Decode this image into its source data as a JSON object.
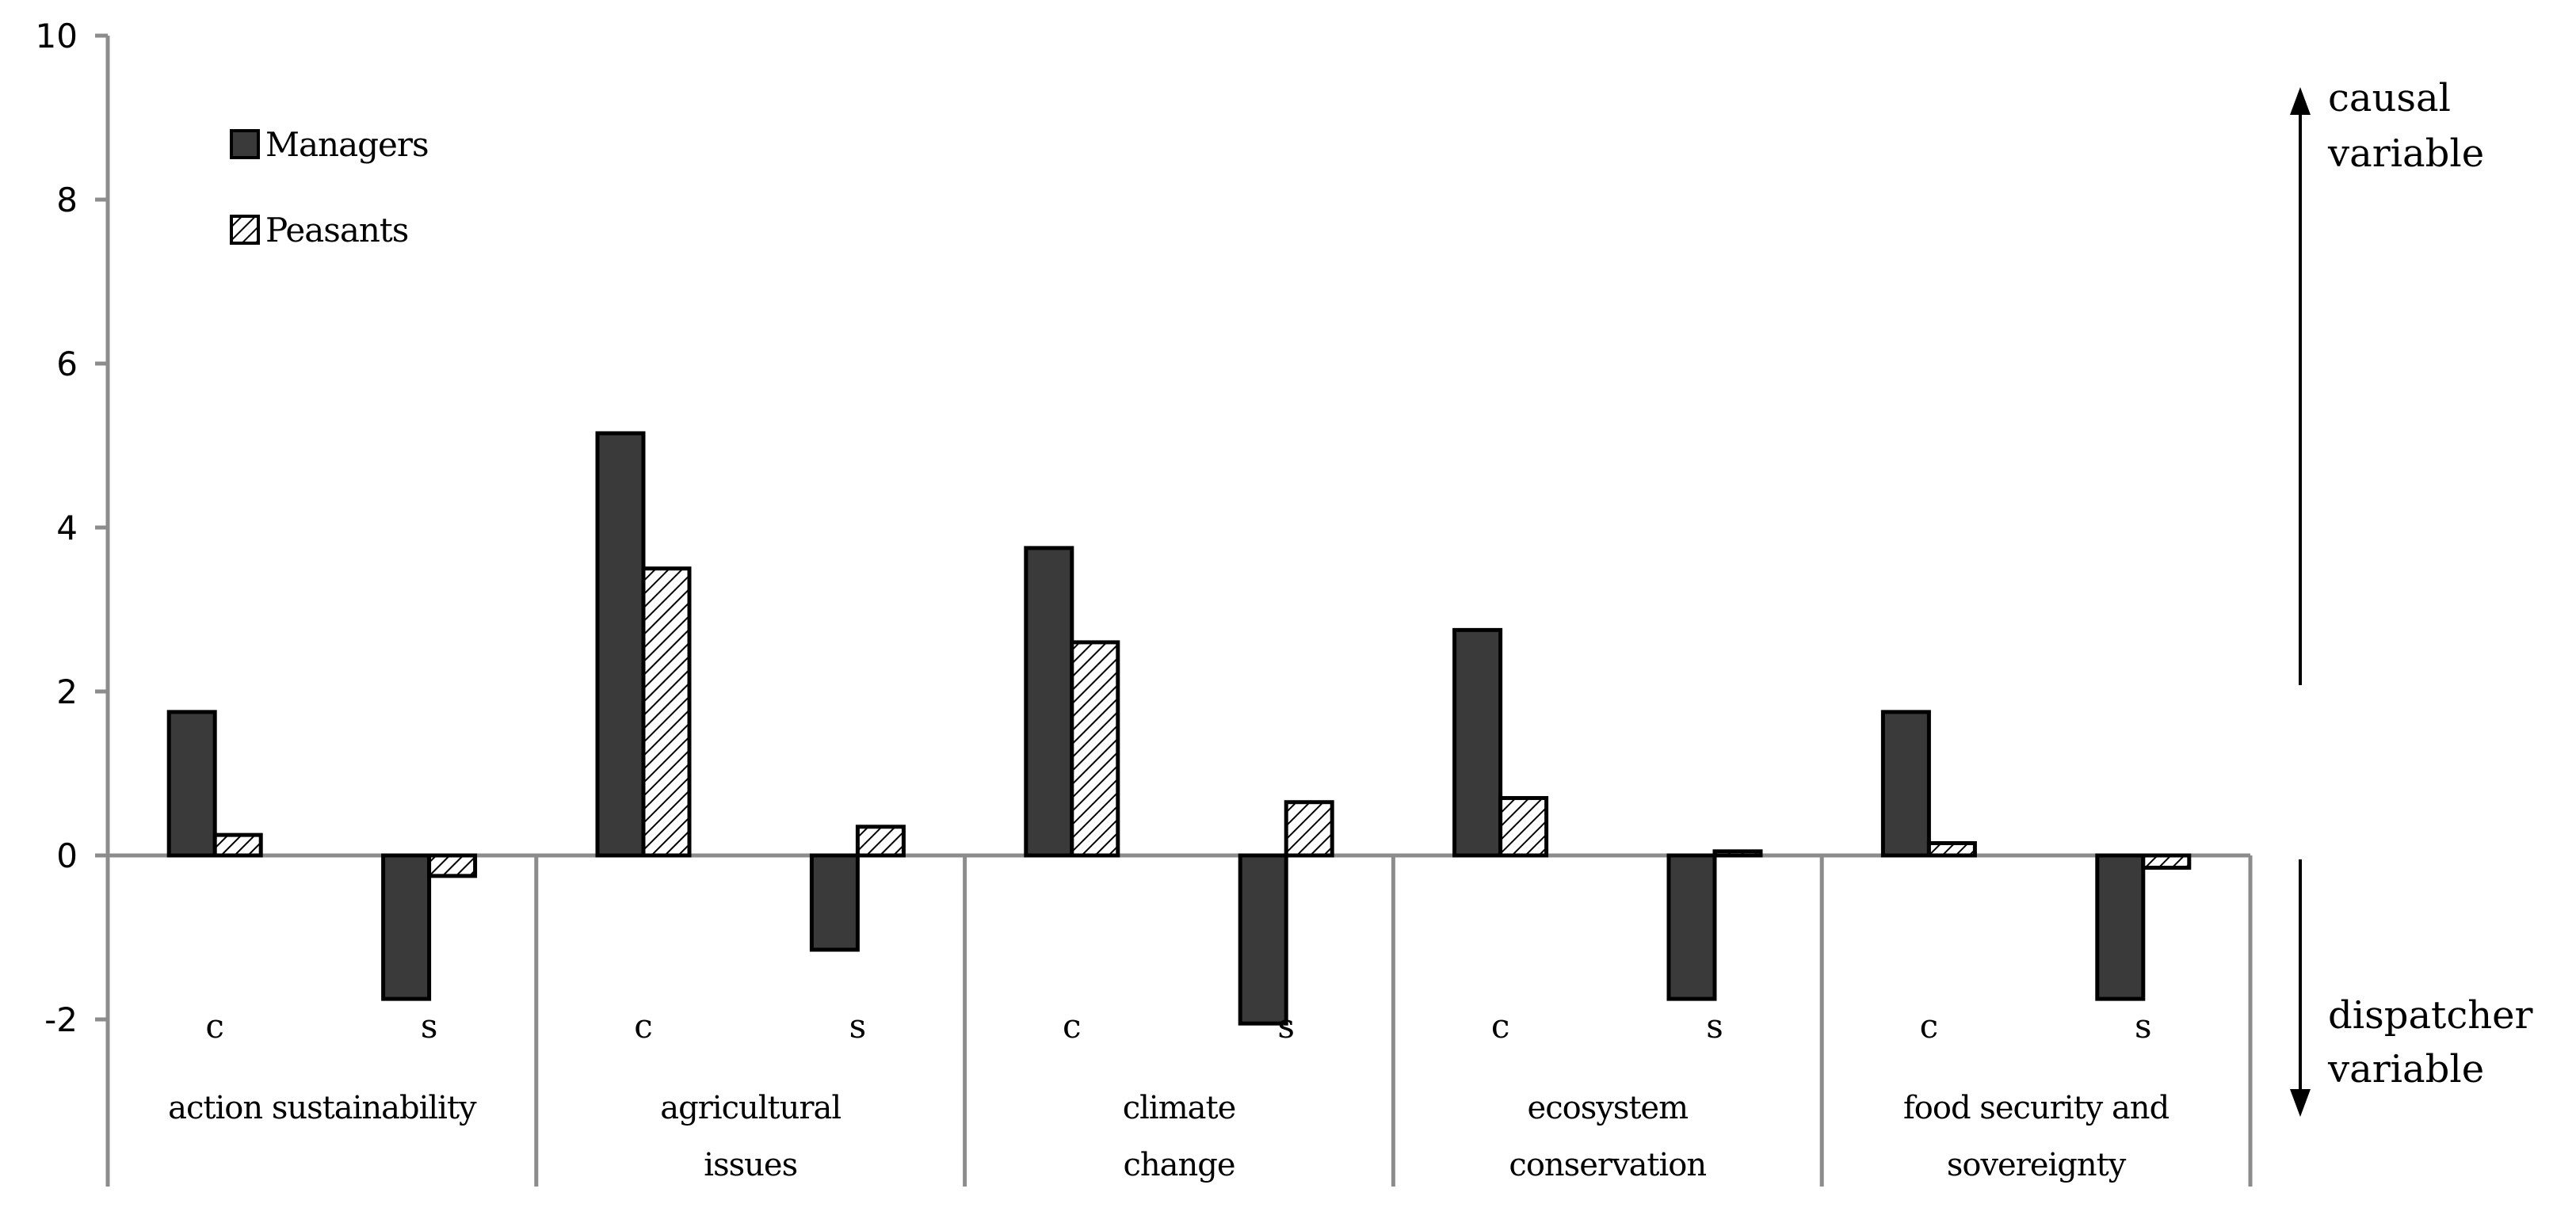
{
  "chart_data": {
    "type": "bar",
    "groups": [
      "action sustainability",
      "agricultural issues",
      "climate change",
      "ecosystem conservation",
      "food security and sovereignty"
    ],
    "group_label_lines": [
      [
        "action sustainability"
      ],
      [
        "agricultural",
        "issues"
      ],
      [
        "climate",
        "change"
      ],
      [
        "ecosystem",
        "conservation"
      ],
      [
        "food security and",
        "sovereignty"
      ]
    ],
    "subcategories": [
      "c",
      "s"
    ],
    "series": [
      {
        "name": "Managers",
        "color": "#3a3a3a",
        "values": [
          1.75,
          -1.75,
          5.15,
          -1.15,
          3.75,
          -2.05,
          2.75,
          -1.75,
          1.75,
          -1.75
        ]
      },
      {
        "name": "Peasants",
        "color": "#ffffff",
        "pattern": "diagonal-hatch",
        "values": [
          0.25,
          -0.25,
          3.5,
          0.35,
          2.6,
          0.65,
          0.7,
          0.05,
          0.15,
          -0.15
        ]
      }
    ],
    "ylim": [
      -2,
      10
    ],
    "yticks": [
      "-2",
      "0",
      "2",
      "4",
      "6",
      "8",
      "10"
    ],
    "legend_position": "top-left",
    "grid": false,
    "annotations": {
      "top": [
        "causal",
        "variable"
      ],
      "bottom": [
        "dispatcher",
        "variable"
      ]
    }
  }
}
